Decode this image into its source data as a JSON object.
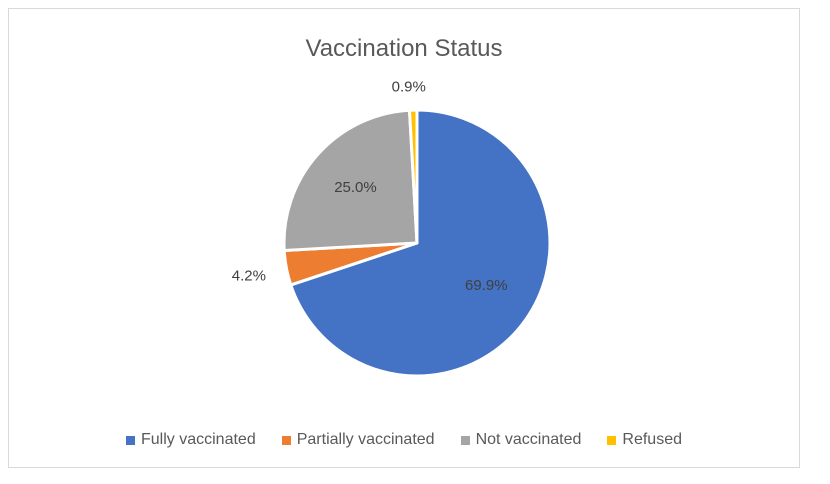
{
  "chart_data": {
    "type": "pie",
    "title": "Vaccination Status",
    "categories": [
      "Fully vaccinated",
      "Partially vaccinated",
      "Not vaccinated",
      "Refused"
    ],
    "values": [
      69.9,
      4.2,
      25.0,
      0.9
    ],
    "data_labels": [
      "69.9%",
      "4.2%",
      "25.0%",
      "0.9%"
    ],
    "colors": [
      "#4472C4",
      "#ED7D31",
      "#A5A5A5",
      "#FFC000"
    ],
    "legend_position": "bottom",
    "start_angle_deg": 0,
    "direction": "clockwise"
  }
}
